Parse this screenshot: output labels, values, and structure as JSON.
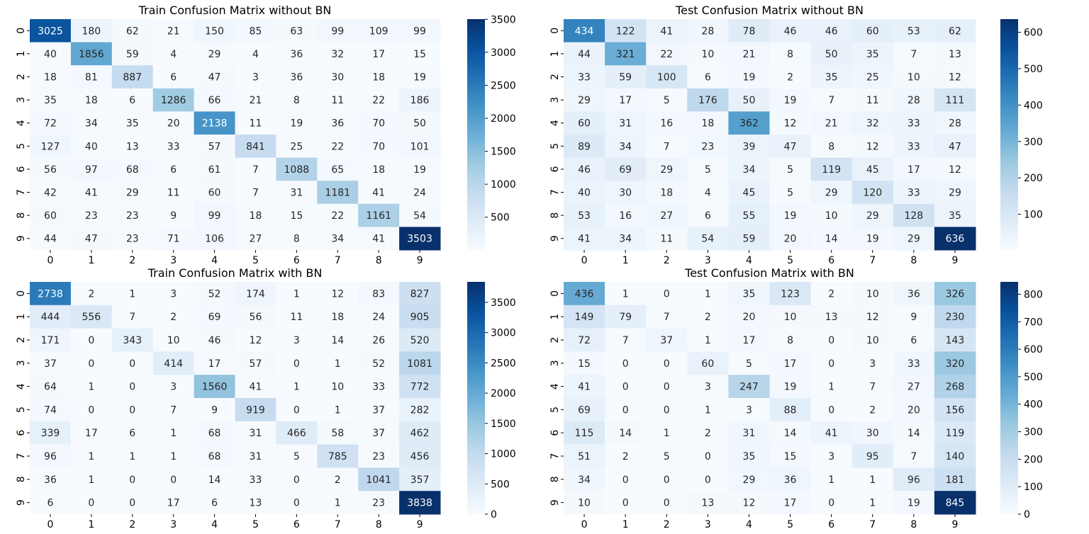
{
  "chart_data": [
    {
      "type": "heatmap",
      "title": "Train Confusion Matrix without BN",
      "x_tick_labels": [
        "0",
        "1",
        "2",
        "3",
        "4",
        "5",
        "6",
        "7",
        "8",
        "9"
      ],
      "y_tick_labels": [
        "0",
        "1",
        "2",
        "3",
        "4",
        "5",
        "6",
        "7",
        "8",
        "9"
      ],
      "values": [
        [
          3025,
          180,
          62,
          21,
          150,
          85,
          63,
          99,
          109,
          99
        ],
        [
          40,
          1856,
          59,
          4,
          29,
          4,
          36,
          32,
          17,
          15
        ],
        [
          18,
          81,
          887,
          6,
          47,
          3,
          36,
          30,
          18,
          19
        ],
        [
          35,
          18,
          6,
          1286,
          66,
          21,
          8,
          11,
          22,
          186
        ],
        [
          72,
          34,
          35,
          20,
          2138,
          11,
          19,
          36,
          70,
          50
        ],
        [
          127,
          40,
          13,
          33,
          57,
          841,
          25,
          22,
          70,
          101
        ],
        [
          56,
          97,
          68,
          6,
          61,
          7,
          1088,
          65,
          18,
          19
        ],
        [
          42,
          41,
          29,
          11,
          60,
          7,
          31,
          1181,
          41,
          24
        ],
        [
          60,
          23,
          23,
          9,
          99,
          18,
          15,
          22,
          1161,
          54
        ],
        [
          44,
          47,
          23,
          71,
          106,
          27,
          8,
          34,
          41,
          3503
        ]
      ],
      "color_range": [
        3,
        3503
      ],
      "colorbar_ticks": [
        500,
        1000,
        1500,
        2000,
        2500,
        3000,
        3500
      ],
      "colormap": "Blues"
    },
    {
      "type": "heatmap",
      "title": "Test Confusion Matrix without BN",
      "x_tick_labels": [
        "0",
        "1",
        "2",
        "3",
        "4",
        "5",
        "6",
        "7",
        "8",
        "9"
      ],
      "y_tick_labels": [
        "0",
        "1",
        "2",
        "3",
        "4",
        "5",
        "6",
        "7",
        "8",
        "9"
      ],
      "values": [
        [
          434,
          122,
          41,
          28,
          78,
          46,
          46,
          60,
          53,
          62
        ],
        [
          44,
          321,
          22,
          10,
          21,
          8,
          50,
          35,
          7,
          13
        ],
        [
          33,
          59,
          100,
          6,
          19,
          2,
          35,
          25,
          10,
          12
        ],
        [
          29,
          17,
          5,
          176,
          50,
          19,
          7,
          11,
          28,
          111
        ],
        [
          60,
          31,
          16,
          18,
          362,
          12,
          21,
          32,
          33,
          28
        ],
        [
          89,
          34,
          7,
          23,
          39,
          47,
          8,
          12,
          33,
          47
        ],
        [
          46,
          69,
          29,
          5,
          34,
          5,
          119,
          45,
          17,
          12
        ],
        [
          40,
          30,
          18,
          4,
          45,
          5,
          29,
          120,
          33,
          29
        ],
        [
          53,
          16,
          27,
          6,
          55,
          19,
          10,
          29,
          128,
          35
        ],
        [
          41,
          34,
          11,
          54,
          59,
          20,
          14,
          19,
          29,
          636
        ]
      ],
      "color_range": [
        2,
        636
      ],
      "colorbar_ticks": [
        100,
        200,
        300,
        400,
        500,
        600
      ],
      "colormap": "Blues"
    },
    {
      "type": "heatmap",
      "title": "Train Confusion Matrix with BN",
      "x_tick_labels": [
        "0",
        "1",
        "2",
        "3",
        "4",
        "5",
        "6",
        "7",
        "8",
        "9"
      ],
      "y_tick_labels": [
        "0",
        "1",
        "2",
        "3",
        "4",
        "5",
        "6",
        "7",
        "8",
        "9"
      ],
      "values": [
        [
          2738,
          2,
          1,
          3,
          52,
          174,
          1,
          12,
          83,
          827
        ],
        [
          444,
          556,
          7,
          2,
          69,
          56,
          11,
          18,
          24,
          905
        ],
        [
          171,
          0,
          343,
          10,
          46,
          12,
          3,
          14,
          26,
          520
        ],
        [
          37,
          0,
          0,
          414,
          17,
          57,
          0,
          1,
          52,
          1081
        ],
        [
          64,
          1,
          0,
          3,
          1560,
          41,
          1,
          10,
          33,
          772
        ],
        [
          74,
          0,
          0,
          7,
          9,
          919,
          0,
          1,
          37,
          282
        ],
        [
          339,
          17,
          6,
          1,
          68,
          31,
          466,
          58,
          37,
          462
        ],
        [
          96,
          1,
          1,
          1,
          68,
          31,
          5,
          785,
          23,
          456
        ],
        [
          36,
          1,
          0,
          0,
          14,
          33,
          0,
          2,
          1041,
          357
        ],
        [
          6,
          0,
          0,
          17,
          6,
          13,
          0,
          1,
          23,
          3838
        ]
      ],
      "color_range": [
        0,
        3838
      ],
      "colorbar_ticks": [
        0,
        500,
        1000,
        1500,
        2000,
        2500,
        3000,
        3500
      ],
      "colormap": "Blues"
    },
    {
      "type": "heatmap",
      "title": "Test Confusion Matrix with BN",
      "x_tick_labels": [
        "0",
        "1",
        "2",
        "3",
        "4",
        "5",
        "6",
        "7",
        "8",
        "9"
      ],
      "y_tick_labels": [
        "0",
        "1",
        "2",
        "3",
        "4",
        "5",
        "6",
        "7",
        "8",
        "9"
      ],
      "values": [
        [
          436,
          1,
          0,
          1,
          35,
          123,
          2,
          10,
          36,
          326
        ],
        [
          149,
          79,
          7,
          2,
          20,
          10,
          13,
          12,
          9,
          230
        ],
        [
          72,
          7,
          37,
          1,
          17,
          8,
          0,
          10,
          6,
          143
        ],
        [
          15,
          0,
          0,
          60,
          5,
          17,
          0,
          3,
          33,
          320
        ],
        [
          41,
          0,
          0,
          3,
          247,
          19,
          1,
          7,
          27,
          268
        ],
        [
          69,
          0,
          0,
          1,
          3,
          88,
          0,
          2,
          20,
          156
        ],
        [
          115,
          14,
          1,
          2,
          31,
          14,
          41,
          30,
          14,
          119
        ],
        [
          51,
          2,
          5,
          0,
          35,
          15,
          3,
          95,
          7,
          140
        ],
        [
          34,
          0,
          0,
          0,
          29,
          36,
          1,
          1,
          96,
          181
        ],
        [
          10,
          0,
          0,
          13,
          12,
          17,
          0,
          1,
          19,
          845
        ]
      ],
      "color_range": [
        0,
        845
      ],
      "colorbar_ticks": [
        0,
        100,
        200,
        300,
        400,
        500,
        600,
        700,
        800
      ],
      "colormap": "Blues"
    }
  ]
}
